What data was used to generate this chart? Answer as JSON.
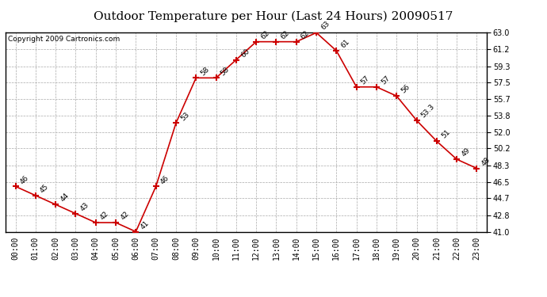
{
  "title": "Outdoor Temperature per Hour (Last 24 Hours) 20090517",
  "copyright": "Copyright 2009 Cartronics.com",
  "hours": [
    "00:00",
    "01:00",
    "02:00",
    "03:00",
    "04:00",
    "05:00",
    "06:00",
    "07:00",
    "08:00",
    "09:00",
    "10:00",
    "11:00",
    "12:00",
    "13:00",
    "14:00",
    "15:00",
    "16:00",
    "17:00",
    "18:00",
    "19:00",
    "20:00",
    "21:00",
    "22:00",
    "23:00"
  ],
  "temperatures": [
    46,
    45,
    44,
    43,
    42,
    42,
    41,
    46,
    53,
    58,
    58,
    60,
    62,
    62,
    62,
    63,
    61,
    57,
    57,
    56,
    53.3,
    51,
    49,
    48
  ],
  "line_color": "#cc0000",
  "marker": "+",
  "marker_size": 6,
  "marker_linewidth": 1.5,
  "line_width": 1.2,
  "bg_color": "#ffffff",
  "plot_bg_color": "#ffffff",
  "grid_color": "#aaaaaa",
  "ylim_min": 41.0,
  "ylim_max": 63.0,
  "yticks": [
    41.0,
    42.8,
    44.7,
    46.5,
    48.3,
    50.2,
    52.0,
    53.8,
    55.7,
    57.5,
    59.3,
    61.2,
    63.0
  ],
  "title_fontsize": 11,
  "copyright_fontsize": 6.5,
  "label_fontsize": 6.5,
  "tick_fontsize": 7,
  "label_rotation": 45
}
